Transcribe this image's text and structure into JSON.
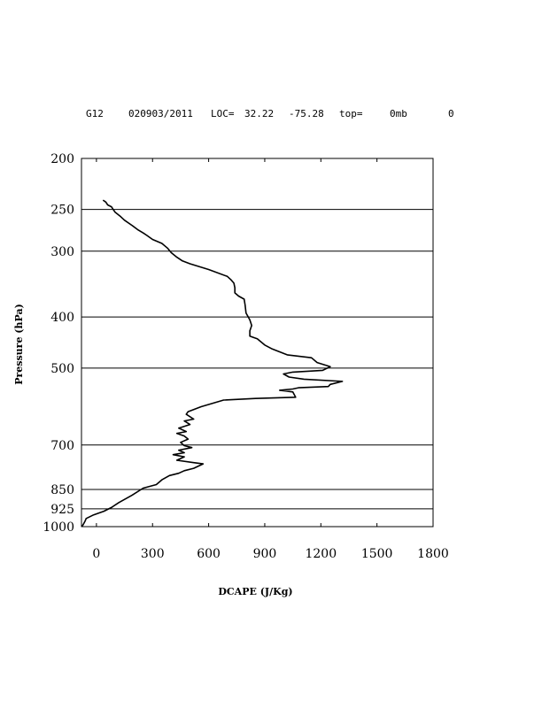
{
  "header": {
    "station": "G12",
    "datetime": "020903/2011",
    "loc_label": "LOC=",
    "lat": "32.22",
    "lon": "-75.28",
    "top_label": "top=",
    "top_value": "0mb",
    "extra": "0"
  },
  "chart_data": {
    "type": "line",
    "xlabel": "DCAPE (J/Kg)",
    "ylabel": "Pressure (hPa)",
    "xlim": [
      -80,
      1800
    ],
    "ylim": [
      1000,
      200
    ],
    "y_scale": "log",
    "grid": "horizontal lines at labeled pressure levels",
    "x_ticks": [
      "0",
      "300",
      "600",
      "900",
      "1200",
      "1500",
      "1800"
    ],
    "x_tick_values": [
      0,
      300,
      600,
      900,
      1200,
      1500,
      1800
    ],
    "y_ticks": [
      "200",
      "250",
      "300",
      "400",
      "500",
      "700",
      "850",
      "925",
      "1000"
    ],
    "y_tick_values": [
      200,
      250,
      300,
      400,
      500,
      700,
      850,
      925,
      1000
    ],
    "series": [
      {
        "color": "#000000",
        "points": [
          [
            -78,
            1000
          ],
          [
            -70,
            990
          ],
          [
            -60,
            975
          ],
          [
            -55,
            965
          ],
          [
            -15,
            950
          ],
          [
            40,
            935
          ],
          [
            80,
            920
          ],
          [
            120,
            900
          ],
          [
            190,
            872
          ],
          [
            250,
            845
          ],
          [
            320,
            832
          ],
          [
            350,
            815
          ],
          [
            390,
            800
          ],
          [
            440,
            792
          ],
          [
            470,
            783
          ],
          [
            520,
            775
          ],
          [
            570,
            760
          ],
          [
            520,
            756
          ],
          [
            430,
            748
          ],
          [
            470,
            737
          ],
          [
            410,
            730
          ],
          [
            470,
            724
          ],
          [
            440,
            716
          ],
          [
            510,
            708
          ],
          [
            470,
            702
          ],
          [
            450,
            692
          ],
          [
            490,
            682
          ],
          [
            470,
            673
          ],
          [
            430,
            665
          ],
          [
            480,
            660
          ],
          [
            440,
            650
          ],
          [
            500,
            640
          ],
          [
            470,
            630
          ],
          [
            520,
            625
          ],
          [
            480,
            612
          ],
          [
            490,
            605
          ],
          [
            560,
            592
          ],
          [
            630,
            582
          ],
          [
            680,
            575
          ],
          [
            850,
            571
          ],
          [
            1065,
            568
          ],
          [
            1050,
            555
          ],
          [
            980,
            551
          ],
          [
            1050,
            548
          ],
          [
            1080,
            545
          ],
          [
            1240,
            542
          ],
          [
            1250,
            537
          ],
          [
            1315,
            530
          ],
          [
            1110,
            525
          ],
          [
            1030,
            520
          ],
          [
            1000,
            513
          ],
          [
            1050,
            509
          ],
          [
            1210,
            505
          ],
          [
            1250,
            497
          ],
          [
            1180,
            488
          ],
          [
            1150,
            478
          ],
          [
            1020,
            472
          ],
          [
            940,
            460
          ],
          [
            900,
            452
          ],
          [
            860,
            440
          ],
          [
            820,
            435
          ],
          [
            820,
            425
          ],
          [
            830,
            415
          ],
          [
            820,
            405
          ],
          [
            800,
            393
          ],
          [
            795,
            380
          ],
          [
            790,
            370
          ],
          [
            760,
            365
          ],
          [
            740,
            360
          ],
          [
            740,
            352
          ],
          [
            735,
            345
          ],
          [
            720,
            340
          ],
          [
            700,
            335
          ],
          [
            600,
            325
          ],
          [
            500,
            317
          ],
          [
            460,
            313
          ],
          [
            430,
            308
          ],
          [
            400,
            302
          ],
          [
            380,
            296
          ],
          [
            350,
            290
          ],
          [
            300,
            285
          ],
          [
            270,
            280
          ],
          [
            250,
            277
          ],
          [
            220,
            273
          ],
          [
            190,
            268
          ],
          [
            150,
            262
          ],
          [
            130,
            258
          ],
          [
            100,
            253
          ],
          [
            90,
            250
          ],
          [
            80,
            247
          ],
          [
            60,
            245
          ],
          [
            50,
            242
          ],
          [
            35,
            240
          ]
        ]
      }
    ]
  }
}
